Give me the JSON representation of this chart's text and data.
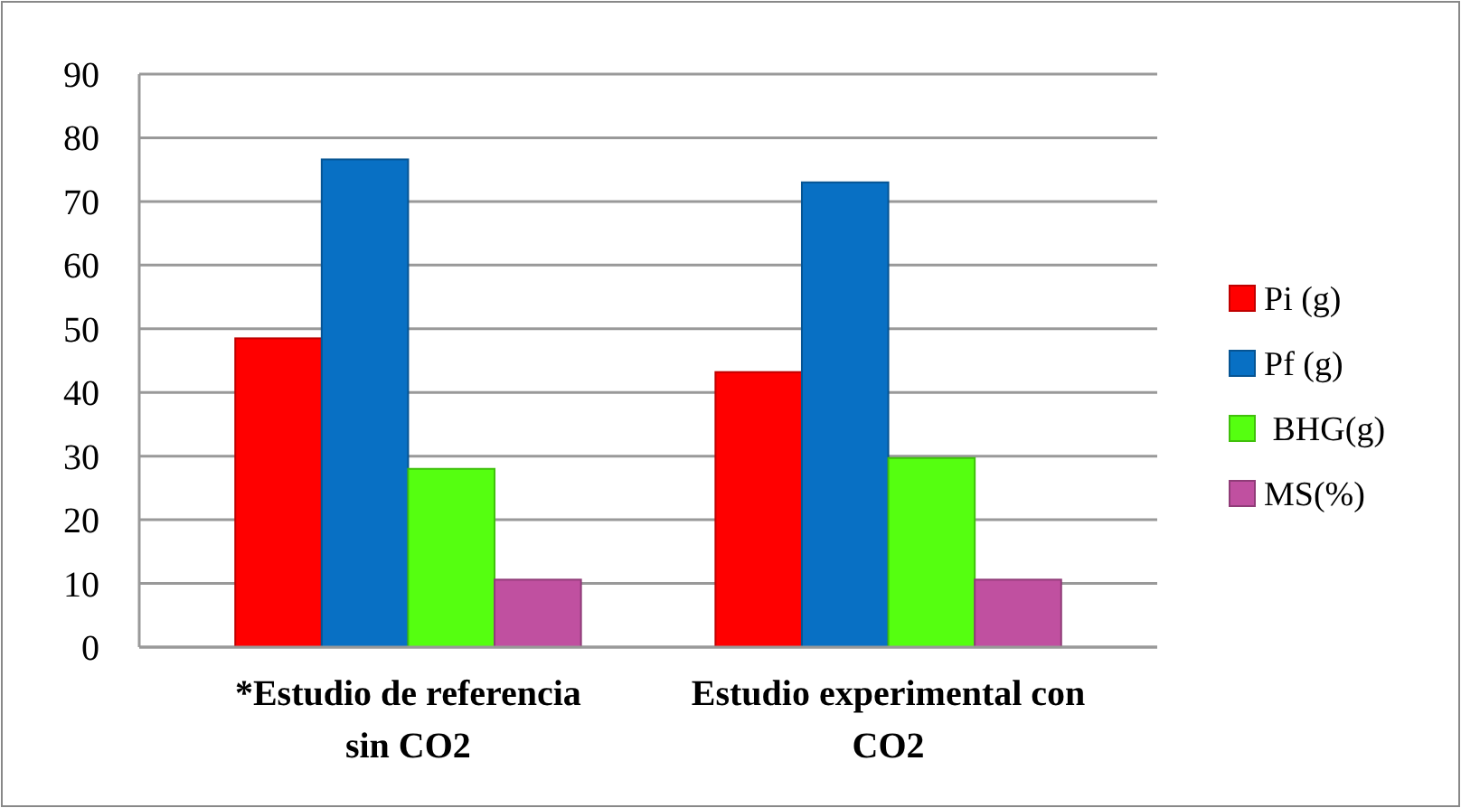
{
  "chart_data": {
    "type": "bar",
    "categories": [
      "*Estudio de referencia sin CO2",
      "Estudio experimental con CO2"
    ],
    "series": [
      {
        "name": "Pi (g)",
        "color": "#ff0000",
        "values": [
          48.5,
          43.2
        ]
      },
      {
        "name": "Pf (g)",
        "color": "#0870c4",
        "values": [
          76.6,
          73.0
        ]
      },
      {
        "name": " BHG(g)",
        "color": "#55ff10",
        "values": [
          28.0,
          29.7
        ]
      },
      {
        "name": "MS(%)",
        "color": "#c050a0",
        "values": [
          10.6,
          10.6
        ]
      }
    ],
    "ylim": [
      0,
      90
    ],
    "yticks": [
      0,
      10,
      20,
      30,
      40,
      50,
      60,
      70,
      80,
      90
    ],
    "grid": "y",
    "legend": "right"
  }
}
